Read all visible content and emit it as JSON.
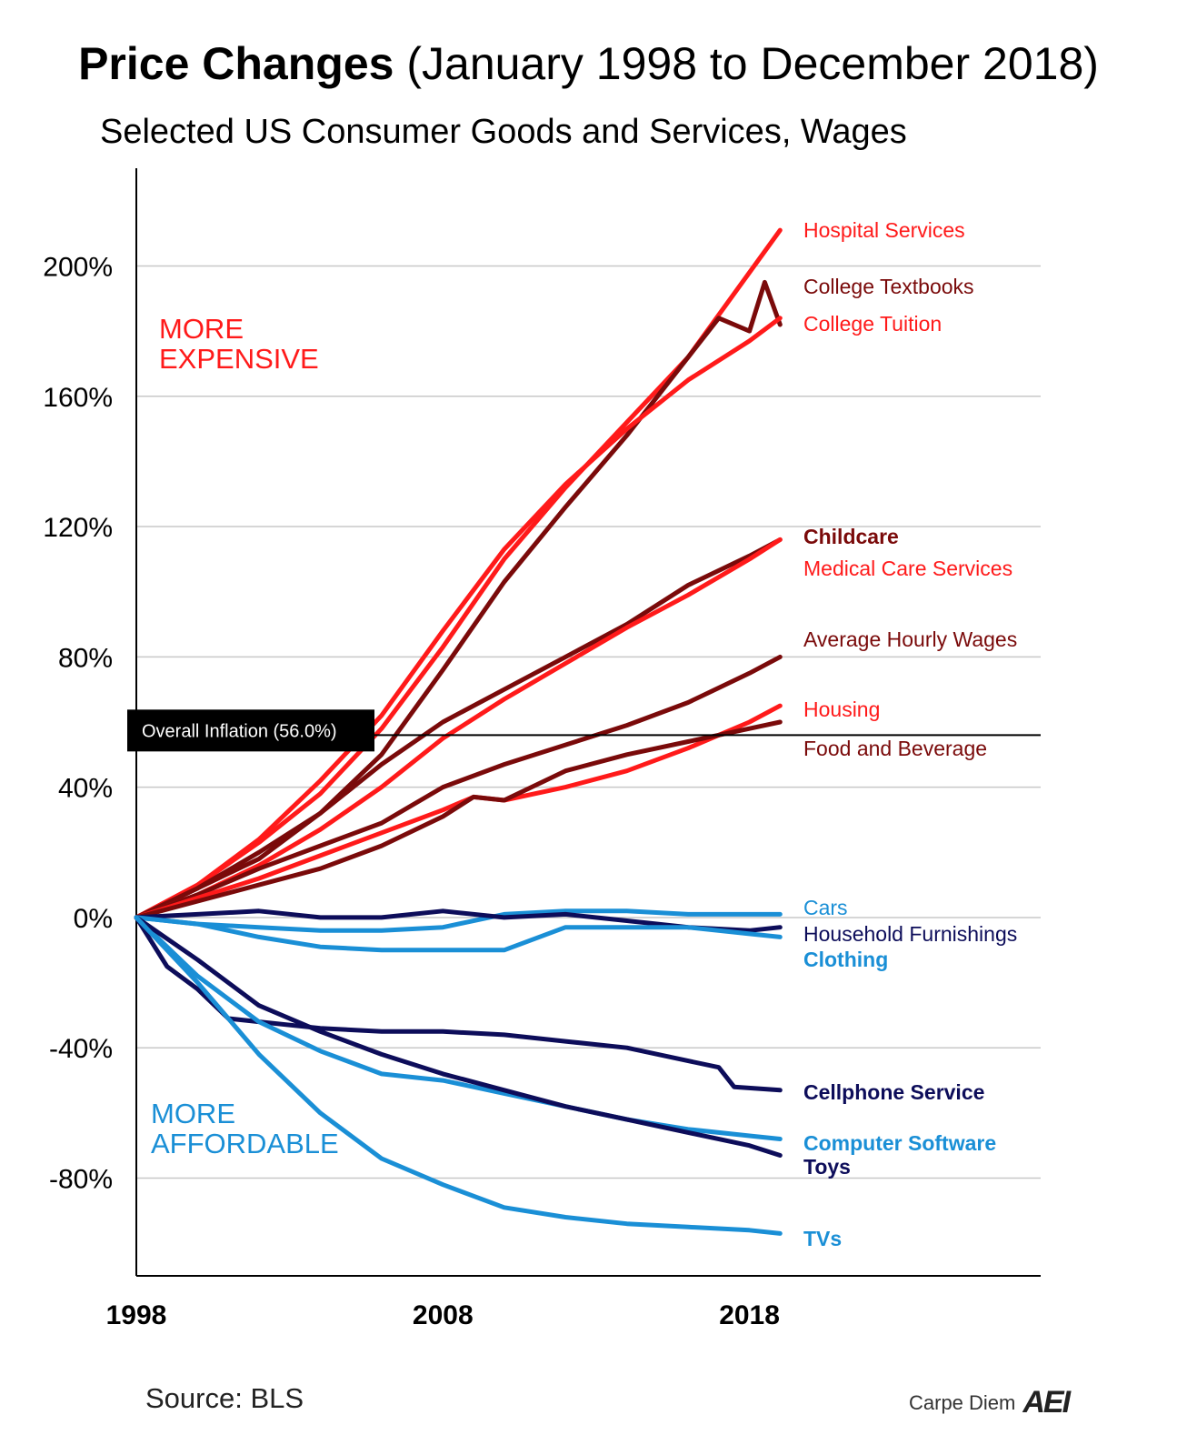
{
  "title_bold": "Price Changes",
  "title_rest": "(January 1998 to December 2018)",
  "subtitle": "Selected US Consumer Goods and Services, Wages",
  "source": "Source: BLS",
  "brand": {
    "text": "Carpe Diem",
    "logo": "AEI"
  },
  "regions": {
    "up": [
      "MORE",
      "EXPENSIVE"
    ],
    "down": [
      "MORE",
      "AFFORDABLE"
    ]
  },
  "inflation_label": "Overall Inflation (56.0%)",
  "chart_data": {
    "type": "line",
    "title": "Price Changes (January 1998 to December 2018)",
    "subtitle": "Selected US Consumer Goods and Services, Wages",
    "x_ticks": [
      1998,
      2008,
      2018
    ],
    "y_ticks": [
      -80,
      -40,
      0,
      40,
      80,
      120,
      160,
      200
    ],
    "y_tick_labels": [
      "-80%",
      "-40%",
      "0%",
      "40%",
      "80%",
      "120%",
      "160%",
      "200%"
    ],
    "xlim": [
      1998,
      2027.5
    ],
    "ylim": [
      -110,
      230
    ],
    "grid": true,
    "reference_line": {
      "label": "Overall Inflation (56.0%)",
      "value": 56.0
    },
    "series": [
      {
        "name": "Hospital Services",
        "color": "#ff1a1a",
        "bold": false,
        "x": [
          1998,
          2000,
          2002,
          2004,
          2006,
          2008,
          2010,
          2012,
          2014,
          2016,
          2018,
          2019
        ],
        "y": [
          0,
          10,
          23,
          38,
          58,
          83,
          110,
          132,
          152,
          172,
          198,
          211
        ]
      },
      {
        "name": "College Textbooks",
        "color": "#7a0a0a",
        "bold": false,
        "x": [
          1998,
          2000,
          2002,
          2004,
          2006,
          2008,
          2010,
          2012,
          2014,
          2016,
          2017,
          2018,
          2018.5,
          2019
        ],
        "y": [
          0,
          9,
          18,
          32,
          50,
          76,
          103,
          126,
          148,
          172,
          184,
          180,
          195,
          182
        ]
      },
      {
        "name": "College Tuition",
        "color": "#ff1a1a",
        "bold": false,
        "x": [
          1998,
          2000,
          2002,
          2004,
          2006,
          2008,
          2010,
          2012,
          2014,
          2016,
          2018,
          2019
        ],
        "y": [
          0,
          10,
          24,
          42,
          62,
          88,
          113,
          133,
          150,
          165,
          177,
          184
        ]
      },
      {
        "name": "Childcare",
        "color": "#7a0a0a",
        "bold": true,
        "x": [
          1998,
          2000,
          2002,
          2004,
          2006,
          2008,
          2010,
          2012,
          2014,
          2016,
          2018,
          2019
        ],
        "y": [
          0,
          9,
          20,
          32,
          47,
          60,
          70,
          80,
          90,
          102,
          111,
          116
        ]
      },
      {
        "name": "Medical Care Services",
        "color": "#ff1a1a",
        "bold": false,
        "x": [
          1998,
          2000,
          2002,
          2004,
          2006,
          2008,
          2010,
          2012,
          2014,
          2016,
          2018,
          2019
        ],
        "y": [
          0,
          7,
          16,
          27,
          40,
          55,
          67,
          78,
          89,
          99,
          110,
          116
        ]
      },
      {
        "name": "Average Hourly Wages",
        "color": "#7a0a0a",
        "bold": false,
        "x": [
          1998,
          2000,
          2002,
          2004,
          2006,
          2008,
          2010,
          2012,
          2014,
          2016,
          2018,
          2019
        ],
        "y": [
          0,
          7,
          15,
          22,
          29,
          40,
          47,
          53,
          59,
          66,
          75,
          80
        ]
      },
      {
        "name": "Housing",
        "color": "#ff1a1a",
        "bold": false,
        "x": [
          1998,
          2000,
          2002,
          2004,
          2006,
          2008,
          2009,
          2010,
          2012,
          2014,
          2016,
          2018,
          2019
        ],
        "y": [
          0,
          6,
          12,
          19,
          26,
          33,
          37,
          36,
          40,
          45,
          52,
          60,
          65
        ]
      },
      {
        "name": "Food and Beverage",
        "color": "#7a0a0a",
        "bold": false,
        "x": [
          1998,
          2000,
          2002,
          2004,
          2006,
          2008,
          2009,
          2010,
          2012,
          2014,
          2016,
          2018,
          2019
        ],
        "y": [
          0,
          5,
          10,
          15,
          22,
          31,
          37,
          36,
          45,
          50,
          54,
          58,
          60
        ]
      },
      {
        "name": "Cars",
        "color": "#1a8fd6",
        "bold": false,
        "x": [
          1998,
          2000,
          2002,
          2004,
          2006,
          2008,
          2010,
          2012,
          2014,
          2016,
          2018,
          2019
        ],
        "y": [
          0,
          -2,
          -3,
          -4,
          -4,
          -3,
          1,
          2,
          2,
          1,
          1,
          1
        ]
      },
      {
        "name": "Household Furnishings",
        "color": "#0d0d5a",
        "bold": false,
        "x": [
          1998,
          2000,
          2002,
          2004,
          2006,
          2008,
          2010,
          2012,
          2014,
          2016,
          2018,
          2019
        ],
        "y": [
          0,
          1,
          2,
          0,
          0,
          2,
          0,
          1,
          -1,
          -3,
          -4,
          -3
        ]
      },
      {
        "name": "Clothing",
        "color": "#1a8fd6",
        "bold": true,
        "x": [
          1998,
          2000,
          2002,
          2004,
          2006,
          2008,
          2010,
          2012,
          2014,
          2016,
          2018,
          2019
        ],
        "y": [
          0,
          -2,
          -6,
          -9,
          -10,
          -10,
          -10,
          -3,
          -3,
          -3,
          -5,
          -6
        ]
      },
      {
        "name": "Cellphone Service",
        "color": "#0d0d5a",
        "bold": true,
        "x": [
          1998,
          1999,
          2000,
          2001,
          2002,
          2004,
          2006,
          2008,
          2010,
          2012,
          2014,
          2016,
          2017,
          2017.5,
          2019
        ],
        "y": [
          0,
          -15,
          -22,
          -31,
          -32,
          -34,
          -35,
          -35,
          -36,
          -38,
          -40,
          -44,
          -46,
          -52,
          -53
        ]
      },
      {
        "name": "Computer Software",
        "color": "#1a8fd6",
        "bold": true,
        "x": [
          1998,
          2000,
          2002,
          2004,
          2006,
          2008,
          2010,
          2012,
          2014,
          2016,
          2018,
          2019
        ],
        "y": [
          0,
          -18,
          -32,
          -41,
          -48,
          -50,
          -54,
          -58,
          -62,
          -65,
          -67,
          -68
        ]
      },
      {
        "name": "Toys",
        "color": "#0d0d5a",
        "bold": true,
        "x": [
          1998,
          2000,
          2002,
          2004,
          2006,
          2008,
          2010,
          2012,
          2014,
          2016,
          2018,
          2019
        ],
        "y": [
          0,
          -13,
          -27,
          -35,
          -42,
          -48,
          -53,
          -58,
          -62,
          -66,
          -70,
          -73
        ]
      },
      {
        "name": "TVs",
        "color": "#1a8fd6",
        "bold": true,
        "x": [
          1998,
          2000,
          2002,
          2004,
          2006,
          2008,
          2010,
          2012,
          2014,
          2016,
          2018,
          2019
        ],
        "y": [
          0,
          -20,
          -42,
          -60,
          -74,
          -82,
          -89,
          -92,
          -94,
          -95,
          -96,
          -97
        ]
      }
    ]
  }
}
